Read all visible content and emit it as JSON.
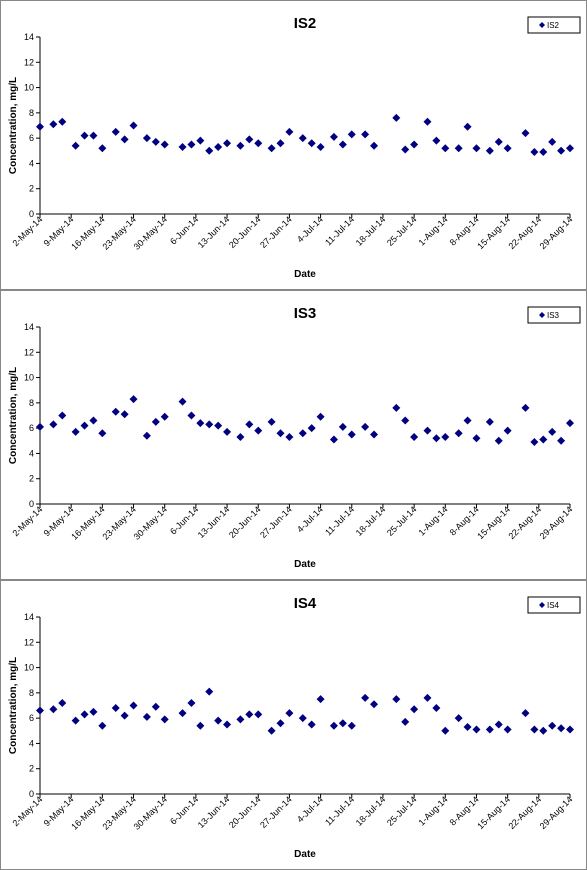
{
  "chart_data": [
    {
      "type": "scatter",
      "title": "IS2",
      "x_label": "Date",
      "y_label": "Concentration, mg/L",
      "legend": "top-right",
      "x": [
        "2014-05-02",
        "2014-05-05",
        "2014-05-07",
        "2014-05-10",
        "2014-05-12",
        "2014-05-14",
        "2014-05-16",
        "2014-05-19",
        "2014-05-21",
        "2014-05-23",
        "2014-05-26",
        "2014-05-28",
        "2014-05-30",
        "2014-06-03",
        "2014-06-05",
        "2014-06-07",
        "2014-06-09",
        "2014-06-11",
        "2014-06-13",
        "2014-06-16",
        "2014-06-18",
        "2014-06-20",
        "2014-06-23",
        "2014-06-25",
        "2014-06-27",
        "2014-06-30",
        "2014-07-02",
        "2014-07-04",
        "2014-07-07",
        "2014-07-09",
        "2014-07-11",
        "2014-07-14",
        "2014-07-16",
        "2014-07-21",
        "2014-07-23",
        "2014-07-25",
        "2014-07-28",
        "2014-07-30",
        "2014-08-01",
        "2014-08-04",
        "2014-08-06",
        "2014-08-08",
        "2014-08-11",
        "2014-08-13",
        "2014-08-15",
        "2014-08-19",
        "2014-08-21",
        "2014-08-23",
        "2014-08-25",
        "2014-08-27",
        "2014-08-29"
      ],
      "series": [
        {
          "name": "IS2",
          "color": "#000080",
          "values": [
            6.9,
            7.1,
            7.3,
            5.4,
            6.2,
            6.2,
            5.2,
            6.5,
            5.9,
            7.0,
            6.0,
            5.7,
            5.5,
            5.3,
            5.5,
            5.8,
            5.0,
            5.3,
            5.6,
            5.4,
            5.9,
            5.6,
            5.2,
            5.6,
            6.5,
            6.0,
            5.6,
            5.3,
            6.1,
            5.5,
            6.3,
            6.3,
            5.4,
            7.6,
            5.1,
            5.5,
            7.3,
            5.8,
            5.2,
            5.2,
            6.9,
            5.2,
            5.0,
            5.7,
            5.2,
            6.4,
            4.9,
            4.9,
            5.7,
            5.0,
            5.2
          ]
        }
      ],
      "xlim": [
        "2014-05-02",
        "2014-08-29"
      ],
      "xticks": [
        {
          "value": "2014-05-02",
          "label": "2-May-14"
        },
        {
          "value": "2014-05-09",
          "label": "9-May-14"
        },
        {
          "value": "2014-05-16",
          "label": "16-May-14"
        },
        {
          "value": "2014-05-23",
          "label": "23-May-14"
        },
        {
          "value": "2014-05-30",
          "label": "30-May-14"
        },
        {
          "value": "2014-06-06",
          "label": "6-Jun-14"
        },
        {
          "value": "2014-06-13",
          "label": "13-Jun-14"
        },
        {
          "value": "2014-06-20",
          "label": "20-Jun-14"
        },
        {
          "value": "2014-06-27",
          "label": "27-Jun-14"
        },
        {
          "value": "2014-07-04",
          "label": "4-Jul-14"
        },
        {
          "value": "2014-07-11",
          "label": "11-Jul-14"
        },
        {
          "value": "2014-07-18",
          "label": "18-Jul-14"
        },
        {
          "value": "2014-07-25",
          "label": "25-Jul-14"
        },
        {
          "value": "2014-08-01",
          "label": "1-Aug-14"
        },
        {
          "value": "2014-08-08",
          "label": "8-Aug-14"
        },
        {
          "value": "2014-08-15",
          "label": "15-Aug-14"
        },
        {
          "value": "2014-08-22",
          "label": "22-Aug-14"
        },
        {
          "value": "2014-08-29",
          "label": "29-Aug-14"
        }
      ],
      "ylim": [
        0,
        14
      ],
      "yticks": [
        0,
        2,
        4,
        6,
        8,
        10,
        12,
        14
      ]
    },
    {
      "type": "scatter",
      "title": "IS3",
      "x_label": "Date",
      "y_label": "Concentration, mg/L",
      "legend": "top-right",
      "x": [
        "2014-05-02",
        "2014-05-05",
        "2014-05-07",
        "2014-05-10",
        "2014-05-12",
        "2014-05-14",
        "2014-05-16",
        "2014-05-19",
        "2014-05-21",
        "2014-05-23",
        "2014-05-26",
        "2014-05-28",
        "2014-05-30",
        "2014-06-03",
        "2014-06-05",
        "2014-06-07",
        "2014-06-09",
        "2014-06-11",
        "2014-06-13",
        "2014-06-16",
        "2014-06-18",
        "2014-06-20",
        "2014-06-23",
        "2014-06-25",
        "2014-06-27",
        "2014-06-30",
        "2014-07-02",
        "2014-07-04",
        "2014-07-07",
        "2014-07-09",
        "2014-07-11",
        "2014-07-14",
        "2014-07-16",
        "2014-07-21",
        "2014-07-23",
        "2014-07-25",
        "2014-07-28",
        "2014-07-30",
        "2014-08-01",
        "2014-08-04",
        "2014-08-06",
        "2014-08-08",
        "2014-08-11",
        "2014-08-13",
        "2014-08-15",
        "2014-08-19",
        "2014-08-21",
        "2014-08-23",
        "2014-08-25",
        "2014-08-27",
        "2014-08-29"
      ],
      "series": [
        {
          "name": "IS3",
          "color": "#000080",
          "values": [
            6.1,
            6.3,
            7.0,
            5.7,
            6.2,
            6.6,
            5.6,
            7.3,
            7.1,
            8.3,
            5.4,
            6.5,
            6.9,
            8.1,
            7.0,
            6.4,
            6.3,
            6.2,
            5.7,
            5.3,
            6.3,
            5.8,
            6.5,
            5.6,
            5.3,
            5.6,
            6.0,
            6.9,
            5.1,
            6.1,
            5.5,
            6.1,
            5.5,
            7.6,
            6.6,
            5.3,
            5.8,
            5.2,
            5.3,
            5.6,
            6.6,
            5.2,
            6.5,
            5.0,
            5.8,
            7.6,
            4.9,
            5.1,
            5.7,
            5.0,
            6.4
          ]
        }
      ],
      "xlim": [
        "2014-05-02",
        "2014-08-29"
      ],
      "xticks": [
        {
          "value": "2014-05-02",
          "label": "2-May-14"
        },
        {
          "value": "2014-05-09",
          "label": "9-May-14"
        },
        {
          "value": "2014-05-16",
          "label": "16-May-14"
        },
        {
          "value": "2014-05-23",
          "label": "23-May-14"
        },
        {
          "value": "2014-05-30",
          "label": "30-May-14"
        },
        {
          "value": "2014-06-06",
          "label": "6-Jun-14"
        },
        {
          "value": "2014-06-13",
          "label": "13-Jun-14"
        },
        {
          "value": "2014-06-20",
          "label": "20-Jun-14"
        },
        {
          "value": "2014-06-27",
          "label": "27-Jun-14"
        },
        {
          "value": "2014-07-04",
          "label": "4-Jul-14"
        },
        {
          "value": "2014-07-11",
          "label": "11-Jul-14"
        },
        {
          "value": "2014-07-18",
          "label": "18-Jul-14"
        },
        {
          "value": "2014-07-25",
          "label": "25-Jul-14"
        },
        {
          "value": "2014-08-01",
          "label": "1-Aug-14"
        },
        {
          "value": "2014-08-08",
          "label": "8-Aug-14"
        },
        {
          "value": "2014-08-15",
          "label": "15-Aug-14"
        },
        {
          "value": "2014-08-22",
          "label": "22-Aug-14"
        },
        {
          "value": "2014-08-29",
          "label": "29-Aug-14"
        }
      ],
      "ylim": [
        0,
        14
      ],
      "yticks": [
        0,
        2,
        4,
        6,
        8,
        10,
        12,
        14
      ]
    },
    {
      "type": "scatter",
      "title": "IS4",
      "x_label": "Date",
      "y_label": "Concentration, mg/L",
      "legend": "top-right",
      "x": [
        "2014-05-02",
        "2014-05-05",
        "2014-05-07",
        "2014-05-10",
        "2014-05-12",
        "2014-05-14",
        "2014-05-16",
        "2014-05-19",
        "2014-05-21",
        "2014-05-23",
        "2014-05-26",
        "2014-05-28",
        "2014-05-30",
        "2014-06-03",
        "2014-06-05",
        "2014-06-07",
        "2014-06-09",
        "2014-06-11",
        "2014-06-13",
        "2014-06-16",
        "2014-06-18",
        "2014-06-20",
        "2014-06-23",
        "2014-06-25",
        "2014-06-27",
        "2014-06-30",
        "2014-07-02",
        "2014-07-04",
        "2014-07-07",
        "2014-07-09",
        "2014-07-11",
        "2014-07-14",
        "2014-07-16",
        "2014-07-21",
        "2014-07-23",
        "2014-07-25",
        "2014-07-28",
        "2014-07-30",
        "2014-08-01",
        "2014-08-04",
        "2014-08-06",
        "2014-08-08",
        "2014-08-11",
        "2014-08-13",
        "2014-08-15",
        "2014-08-19",
        "2014-08-21",
        "2014-08-23",
        "2014-08-25",
        "2014-08-27",
        "2014-08-29"
      ],
      "series": [
        {
          "name": "IS4",
          "color": "#000080",
          "values": [
            6.6,
            6.7,
            7.2,
            5.8,
            6.3,
            6.5,
            5.4,
            6.8,
            6.2,
            7.0,
            6.1,
            6.9,
            5.9,
            6.4,
            7.2,
            5.4,
            8.1,
            5.8,
            5.5,
            5.9,
            6.3,
            6.3,
            5.0,
            5.6,
            6.4,
            6.0,
            5.5,
            7.5,
            5.4,
            5.6,
            5.4,
            7.6,
            7.1,
            7.5,
            5.7,
            6.7,
            7.6,
            6.8,
            5.0,
            6.0,
            5.3,
            5.1,
            5.1,
            5.5,
            5.1,
            6.4,
            5.1,
            5.0,
            5.4,
            5.2,
            5.1
          ]
        }
      ],
      "xlim": [
        "2014-05-02",
        "2014-08-29"
      ],
      "xticks": [
        {
          "value": "2014-05-02",
          "label": "2-May-14"
        },
        {
          "value": "2014-05-09",
          "label": "9-May-14"
        },
        {
          "value": "2014-05-16",
          "label": "16-May-14"
        },
        {
          "value": "2014-05-23",
          "label": "23-May-14"
        },
        {
          "value": "2014-05-30",
          "label": "30-May-14"
        },
        {
          "value": "2014-06-06",
          "label": "6-Jun-14"
        },
        {
          "value": "2014-06-13",
          "label": "13-Jun-14"
        },
        {
          "value": "2014-06-20",
          "label": "20-Jun-14"
        },
        {
          "value": "2014-06-27",
          "label": "27-Jun-14"
        },
        {
          "value": "2014-07-04",
          "label": "4-Jul-14"
        },
        {
          "value": "2014-07-11",
          "label": "11-Jul-14"
        },
        {
          "value": "2014-07-18",
          "label": "18-Jul-14"
        },
        {
          "value": "2014-07-25",
          "label": "25-Jul-14"
        },
        {
          "value": "2014-08-01",
          "label": "1-Aug-14"
        },
        {
          "value": "2014-08-08",
          "label": "8-Aug-14"
        },
        {
          "value": "2014-08-15",
          "label": "15-Aug-14"
        },
        {
          "value": "2014-08-22",
          "label": "22-Aug-14"
        },
        {
          "value": "2014-08-29",
          "label": "29-Aug-14"
        }
      ],
      "ylim": [
        0,
        14
      ],
      "yticks": [
        0,
        2,
        4,
        6,
        8,
        10,
        12,
        14
      ]
    }
  ]
}
